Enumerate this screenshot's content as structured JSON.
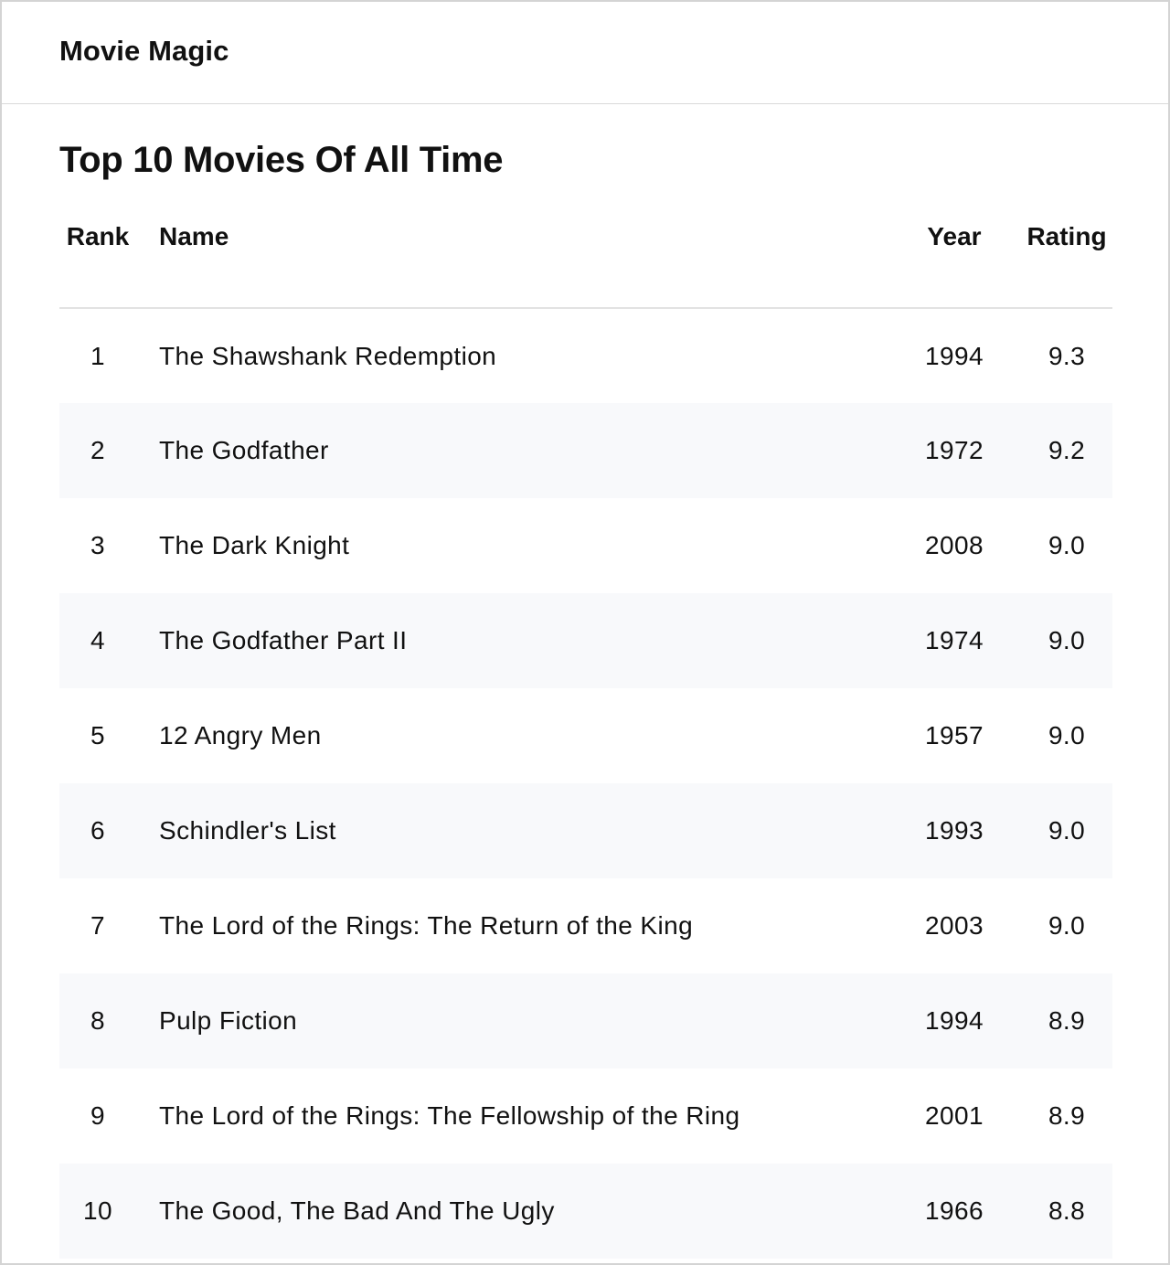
{
  "app": {
    "title": "Movie Magic"
  },
  "page": {
    "title": "Top 10 Movies Of All Time"
  },
  "table": {
    "headers": {
      "rank": "Rank",
      "name": "Name",
      "year": "Year",
      "rating": "Rating"
    },
    "rows": [
      {
        "rank": "1",
        "name": "The Shawshank Redemption",
        "year": "1994",
        "rating": "9.3"
      },
      {
        "rank": "2",
        "name": "The Godfather",
        "year": "1972",
        "rating": "9.2"
      },
      {
        "rank": "3",
        "name": "The Dark Knight",
        "year": "2008",
        "rating": "9.0"
      },
      {
        "rank": "4",
        "name": "The Godfather Part II",
        "year": "1974",
        "rating": "9.0"
      },
      {
        "rank": "5",
        "name": "12 Angry Men",
        "year": "1957",
        "rating": "9.0"
      },
      {
        "rank": "6",
        "name": "Schindler's List",
        "year": "1993",
        "rating": "9.0"
      },
      {
        "rank": "7",
        "name": "The Lord of the Rings: The Return of the King",
        "year": "2003",
        "rating": "9.0"
      },
      {
        "rank": "8",
        "name": "Pulp Fiction",
        "year": "1994",
        "rating": "8.9"
      },
      {
        "rank": "9",
        "name": "The Lord of the Rings: The Fellowship of the Ring",
        "year": "2001",
        "rating": "8.9"
      },
      {
        "rank": "10",
        "name": "The Good, The Bad And The Ugly",
        "year": "1966",
        "rating": "8.8"
      }
    ]
  }
}
